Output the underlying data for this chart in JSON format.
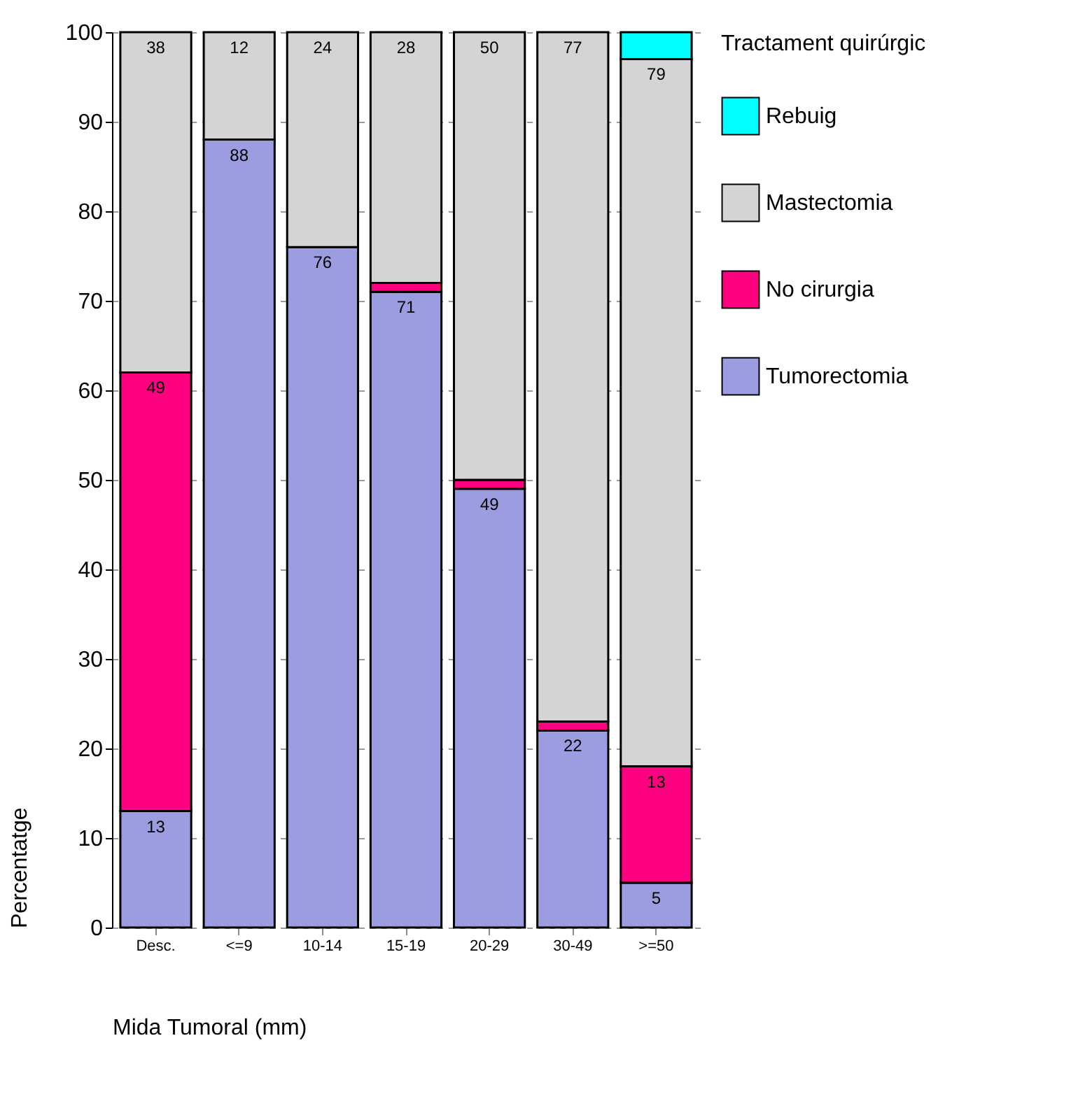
{
  "chart_data": {
    "type": "bar",
    "stacked": true,
    "xlabel": "Mida Tumoral (mm)",
    "ylabel": "Percentatge",
    "legend_title": "Tractament quirúrgic",
    "legend": "right",
    "grid": "y",
    "categories": [
      "Desc.",
      "<=9",
      "10-14",
      "15-19",
      "20-29",
      "30-49",
      ">=50"
    ],
    "ylim": [
      0,
      100
    ],
    "yticks": [
      0,
      10,
      20,
      30,
      40,
      50,
      60,
      70,
      80,
      90,
      100
    ],
    "series": [
      {
        "name": "Tumorectomia",
        "color": "#9c9ce0",
        "values": [
          13,
          88,
          76,
          71,
          49,
          22,
          5
        ],
        "value_labels": [
          "13",
          "88",
          "76",
          "71",
          "49",
          "22",
          "5"
        ]
      },
      {
        "name": "No cirurgia",
        "color": "#ff0080",
        "values": [
          49,
          null,
          null,
          1,
          1,
          1,
          13
        ],
        "value_labels": [
          "49",
          null,
          null,
          null,
          null,
          null,
          "13"
        ]
      },
      {
        "name": "Mastectomia",
        "color": "#d4d4d4",
        "values": [
          38,
          12,
          24,
          28,
          50,
          77,
          79
        ],
        "value_labels": [
          "38",
          "12",
          "24",
          "28",
          "50",
          "77",
          "79"
        ]
      },
      {
        "name": "Rebuig",
        "color": "#00ffff",
        "values": [
          null,
          null,
          null,
          null,
          null,
          null,
          3
        ],
        "value_labels": [
          null,
          null,
          null,
          null,
          null,
          null,
          null
        ]
      }
    ]
  }
}
